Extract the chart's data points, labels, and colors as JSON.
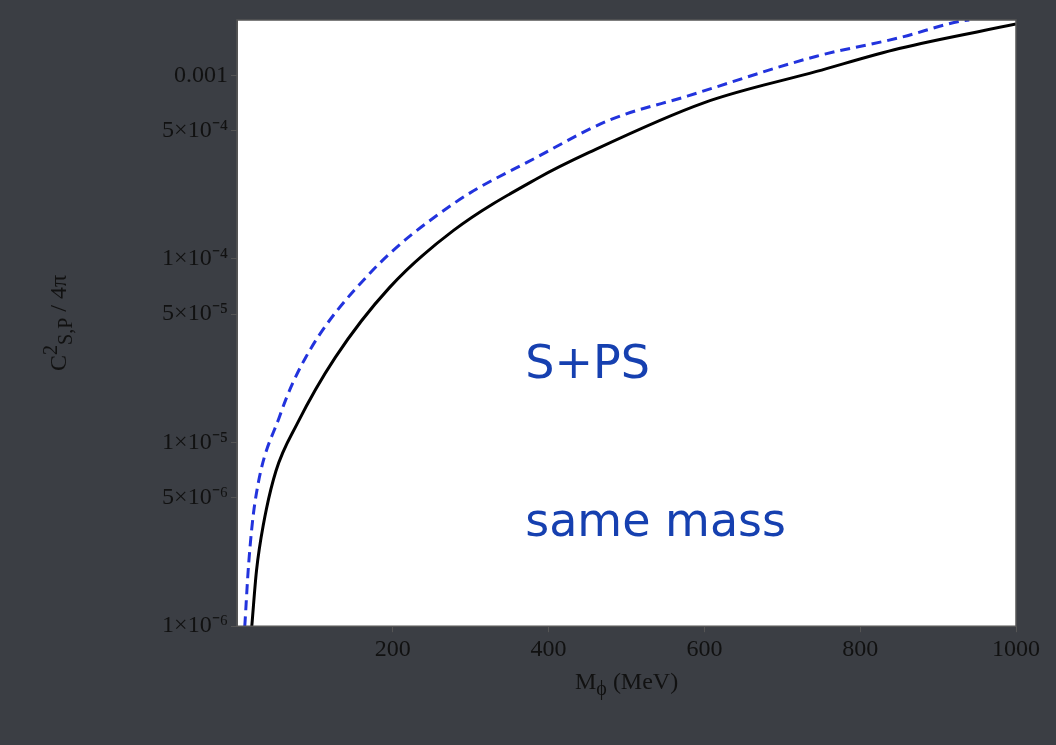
{
  "chart_data": {
    "type": "line",
    "xlabel": "M$_{ϕ}$ (MeV)",
    "ylabel": "C$^{2}$$_{S,P}$ / 4π",
    "log": "y",
    "grid": false,
    "legend": false,
    "marker": "none",
    "xlim": [
      0,
      1000
    ],
    "xticks": [
      200,
      400,
      600,
      800,
      1000
    ],
    "ylim": [
      1e-06,
      0.002
    ],
    "yticks": [
      {
        "value": 1e-06,
        "label": "1×10⁻⁶"
      },
      {
        "value": 5e-06,
        "label": "5×10⁻⁶"
      },
      {
        "value": 1e-05,
        "label": "1×10⁻⁵"
      },
      {
        "value": 5e-05,
        "label": "5×10⁻⁵"
      },
      {
        "value": 0.0001,
        "label": "1×10⁻⁴"
      },
      {
        "value": 0.0005,
        "label": "5×10⁻⁴"
      },
      0.001
    ],
    "series": [
      {
        "color": "#000000",
        "line_style": "solid",
        "x": [
          19,
          25,
          34,
          50,
          77,
          126,
          196,
          278,
          386,
          452,
          600,
          744,
          850,
          1000
        ],
        "values": [
          1e-06,
          2e-06,
          3.6e-06,
          7e-06,
          1.26e-05,
          2.9e-05,
          7e-05,
          0.000143,
          0.000275,
          0.00038,
          0.00071,
          0.00105,
          0.0014,
          0.0019
        ]
      },
      {
        "color": "#2233dd",
        "line_style": "dashed",
        "x": [
          10,
          15,
          23,
          55,
          88,
          170,
          278,
          386,
          478,
          578,
          744,
          850,
          931,
          940
        ],
        "values": [
          1e-06,
          2.2e-06,
          4.7e-06,
          1.4e-05,
          2.9e-05,
          8.3e-05,
          0.0002,
          0.00036,
          0.00057,
          0.00077,
          0.00127,
          0.0016,
          0.00198,
          0.002
        ]
      }
    ],
    "annotations": [
      "S+PS",
      "same mass"
    ]
  }
}
